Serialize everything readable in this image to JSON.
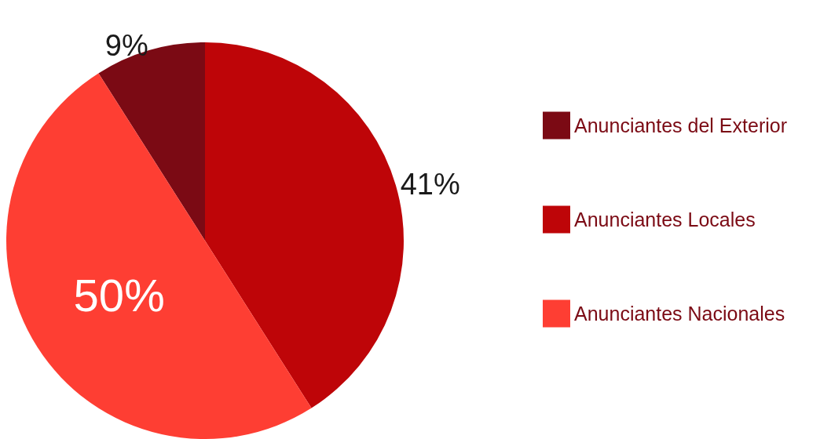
{
  "chart_data": {
    "type": "pie",
    "categories": [
      "Anunciantes del Exterior",
      "Anunciantes Locales",
      "Anunciantes Nacionales"
    ],
    "values": [
      9,
      41,
      50
    ],
    "colors": [
      "#7b0a14",
      "#be0508",
      "#fe3e33"
    ],
    "value_labels": [
      "9%",
      "41%",
      "50%"
    ],
    "legend": "right"
  }
}
